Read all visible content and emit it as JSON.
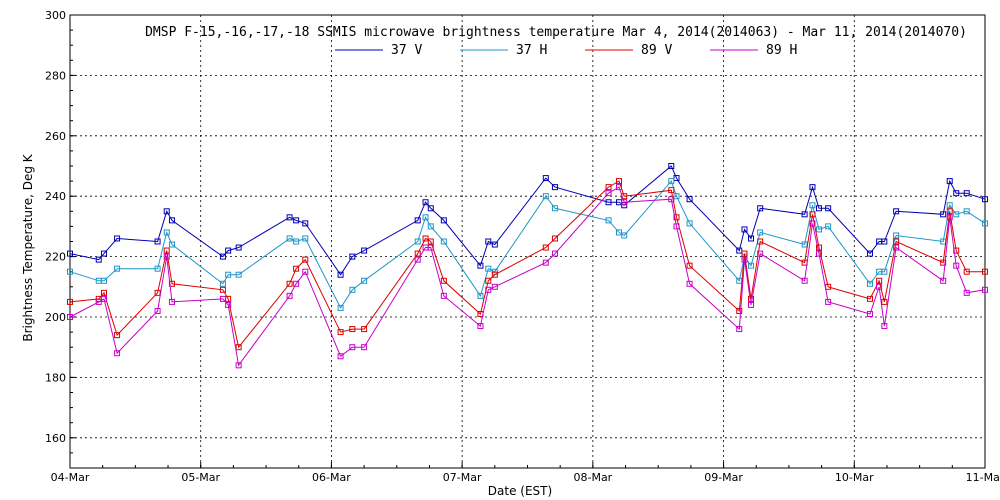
{
  "chart_data": {
    "type": "line",
    "title": "DMSP F-15,-16,-17,-18 SSMIS microwave brightness temperature Mar  4, 2014(2014063) - Mar 11, 2014(2014070)",
    "xlabel": "Date (EST)",
    "ylabel": "Brightness Temperature, Deg K",
    "xlim": [
      0,
      7
    ],
    "ylim": [
      150,
      300
    ],
    "x_ticks": [
      0,
      1,
      2,
      3,
      4,
      5,
      6,
      7
    ],
    "x_tick_labels": [
      "04-Mar",
      "05-Mar",
      "06-Mar",
      "07-Mar",
      "08-Mar",
      "09-Mar",
      "10-Mar",
      "11-Mar"
    ],
    "y_ticks": [
      160,
      180,
      200,
      220,
      240,
      260,
      280,
      300
    ],
    "y_tick_labels": [
      "160",
      "180",
      "200",
      "220",
      "240",
      "260",
      "280",
      "300"
    ],
    "grid": true,
    "legend_position": "top-center",
    "series": [
      {
        "name": "37 V",
        "color": "#0000b4",
        "x": [
          0.0,
          0.22,
          0.26,
          0.36,
          0.67,
          0.74,
          0.78,
          1.17,
          1.21,
          1.29,
          1.68,
          1.73,
          1.8,
          2.07,
          2.16,
          2.25,
          2.66,
          2.72,
          2.76,
          2.86,
          3.14,
          3.2,
          3.25,
          3.64,
          3.71,
          4.12,
          4.2,
          4.24,
          4.6,
          4.64,
          4.74,
          5.12,
          5.16,
          5.21,
          5.28,
          5.62,
          5.68,
          5.73,
          5.8,
          6.12,
          6.19,
          6.23,
          6.32,
          6.68,
          6.73,
          6.78,
          6.86,
          7.0
        ],
        "values": [
          221,
          219,
          221,
          226,
          225,
          235,
          232,
          220,
          222,
          223,
          233,
          232,
          231,
          214,
          220,
          222,
          232,
          238,
          236,
          232,
          217,
          225,
          224,
          246,
          243,
          238,
          238,
          237,
          250,
          246,
          239,
          222,
          229,
          226,
          236,
          234,
          243,
          236,
          236,
          221,
          225,
          225,
          235,
          234,
          245,
          241,
          241,
          239
        ]
      },
      {
        "name": "37 H",
        "color": "#1e96c8",
        "x": [
          0.0,
          0.22,
          0.26,
          0.36,
          0.67,
          0.74,
          0.78,
          1.17,
          1.21,
          1.29,
          1.68,
          1.73,
          1.8,
          2.07,
          2.16,
          2.25,
          2.66,
          2.72,
          2.76,
          2.86,
          3.14,
          3.2,
          3.25,
          3.64,
          3.71,
          4.12,
          4.2,
          4.24,
          4.6,
          4.64,
          4.74,
          5.12,
          5.16,
          5.21,
          5.28,
          5.62,
          5.68,
          5.73,
          5.8,
          6.12,
          6.19,
          6.23,
          6.32,
          6.68,
          6.73,
          6.78,
          6.86,
          7.0
        ],
        "values": [
          215,
          212,
          212,
          216,
          216,
          228,
          224,
          211,
          214,
          214,
          226,
          225,
          226,
          203,
          209,
          212,
          225,
          233,
          230,
          225,
          207,
          216,
          215,
          240,
          236,
          232,
          228,
          227,
          245,
          240,
          231,
          212,
          220,
          217,
          228,
          224,
          237,
          229,
          230,
          211,
          215,
          215,
          227,
          225,
          237,
          234,
          235,
          231
        ]
      },
      {
        "name": "89 V",
        "color": "#dc0000",
        "x": [
          0.0,
          0.22,
          0.26,
          0.36,
          0.67,
          0.74,
          0.78,
          1.17,
          1.21,
          1.29,
          1.68,
          1.73,
          1.8,
          2.07,
          2.16,
          2.25,
          2.66,
          2.72,
          2.76,
          2.86,
          3.14,
          3.2,
          3.25,
          3.64,
          3.71,
          4.12,
          4.2,
          4.24,
          4.6,
          4.64,
          4.74,
          5.12,
          5.16,
          5.21,
          5.28,
          5.62,
          5.68,
          5.73,
          5.8,
          6.12,
          6.19,
          6.23,
          6.32,
          6.68,
          6.73,
          6.78,
          6.86,
          7.0
        ],
        "values": [
          205,
          206,
          208,
          194,
          208,
          222,
          211,
          209,
          206,
          190,
          211,
          216,
          219,
          195,
          196,
          196,
          221,
          226,
          225,
          212,
          201,
          212,
          214,
          223,
          226,
          243,
          245,
          240,
          242,
          233,
          217,
          202,
          221,
          206,
          225,
          218,
          234,
          223,
          210,
          206,
          212,
          205,
          225,
          218,
          235,
          222,
          215,
          215
        ]
      },
      {
        "name": "89 H",
        "color": "#c800c8",
        "x": [
          0.0,
          0.22,
          0.26,
          0.36,
          0.67,
          0.74,
          0.78,
          1.17,
          1.21,
          1.29,
          1.68,
          1.73,
          1.8,
          2.07,
          2.16,
          2.25,
          2.66,
          2.72,
          2.76,
          2.86,
          3.14,
          3.2,
          3.25,
          3.64,
          3.71,
          4.12,
          4.2,
          4.24,
          4.6,
          4.64,
          4.74,
          5.12,
          5.16,
          5.21,
          5.28,
          5.62,
          5.68,
          5.73,
          5.8,
          6.12,
          6.19,
          6.23,
          6.32,
          6.68,
          6.73,
          6.78,
          6.86,
          7.0
        ],
        "values": [
          200,
          205,
          206,
          188,
          202,
          220,
          205,
          206,
          204,
          184,
          207,
          211,
          215,
          187,
          190,
          190,
          219,
          223,
          223,
          207,
          197,
          209,
          210,
          218,
          221,
          241,
          243,
          238,
          239,
          230,
          211,
          196,
          219,
          204,
          221,
          212,
          231,
          221,
          205,
          201,
          210,
          197,
          223,
          212,
          233,
          217,
          208,
          209
        ]
      }
    ]
  }
}
